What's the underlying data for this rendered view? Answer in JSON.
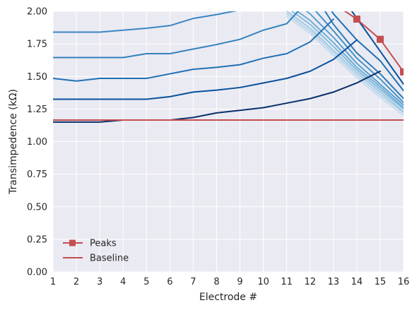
{
  "chart_data": {
    "type": "line",
    "xlabel": "Electrode #",
    "ylabel": "Transimpedence (kΩ)",
    "xlim": [
      1,
      16
    ],
    "ylim": [
      0,
      2.0
    ],
    "xticks": [
      1,
      2,
      3,
      4,
      5,
      6,
      7,
      8,
      9,
      10,
      11,
      12,
      13,
      14,
      15,
      16
    ],
    "yticks": [
      0.0,
      0.25,
      0.5,
      0.75,
      1.0,
      1.25,
      1.5,
      1.75,
      2.0
    ],
    "ytick_labels": [
      "0.00",
      "0.25",
      "0.50",
      "0.75",
      "1.00",
      "1.25",
      "1.50",
      "1.75",
      "2.00"
    ],
    "grid": true,
    "legend": {
      "position": "lower-left",
      "entries": [
        {
          "label": "Peaks",
          "color": "#c44e52",
          "marker": "square"
        },
        {
          "label": "Baseline",
          "color": "#c44e52",
          "marker": "none"
        }
      ]
    },
    "colors": {
      "background": "#eaeaf2",
      "grid": "#ffffff",
      "peaks": "#c44e52",
      "baseline": "#c44e52"
    },
    "baseline": {
      "x": [
        1,
        16
      ],
      "y": [
        1.165,
        1.165
      ]
    },
    "peaks": {
      "x": [
        13,
        14,
        15,
        16
      ],
      "y": [
        2.06,
        1.94,
        1.785,
        1.535
      ]
    },
    "rising_series": [
      {
        "color": "#08306b",
        "x": [
          1,
          2,
          3,
          4,
          5,
          6,
          7,
          8,
          9,
          10,
          11,
          12,
          13,
          14,
          15
        ],
        "y": [
          1.15,
          1.15,
          1.15,
          1.165,
          1.165,
          1.165,
          1.185,
          1.22,
          1.24,
          1.26,
          1.295,
          1.33,
          1.38,
          1.45,
          1.54
        ]
      },
      {
        "color": "#08519c",
        "x": [
          1,
          2,
          3,
          4,
          5,
          6,
          7,
          8,
          9,
          10,
          11,
          12,
          13,
          14
        ],
        "y": [
          1.325,
          1.325,
          1.325,
          1.325,
          1.325,
          1.345,
          1.38,
          1.395,
          1.415,
          1.45,
          1.485,
          1.54,
          1.63,
          1.78
        ]
      },
      {
        "color": "#2171b5",
        "x": [
          1,
          2,
          3,
          4,
          5,
          6,
          7,
          8,
          9,
          10,
          11,
          12,
          13
        ],
        "y": [
          1.485,
          1.465,
          1.485,
          1.485,
          1.485,
          1.52,
          1.555,
          1.57,
          1.59,
          1.64,
          1.675,
          1.765,
          1.94
        ]
      },
      {
        "color": "#3182bd",
        "x": [
          1,
          2,
          3,
          4,
          5,
          6,
          7,
          8,
          9,
          10,
          11,
          12
        ],
        "y": [
          1.645,
          1.645,
          1.645,
          1.645,
          1.675,
          1.675,
          1.71,
          1.745,
          1.785,
          1.855,
          1.905,
          2.1
        ]
      },
      {
        "color": "#3a87c4",
        "x": [
          1,
          2,
          3,
          4,
          5,
          6,
          7,
          8,
          9,
          10,
          11,
          12
        ],
        "y": [
          1.84,
          1.84,
          1.84,
          1.855,
          1.87,
          1.89,
          1.945,
          1.975,
          2.01,
          2.05,
          2.1,
          2.2
        ]
      }
    ],
    "falling_series": [
      {
        "color": "#08519c",
        "x": [
          13,
          16
        ],
        "y": [
          2.2,
          1.44
        ]
      },
      {
        "color": "#2171b5",
        "x": [
          12,
          13,
          14,
          15,
          16
        ],
        "y": [
          2.3,
          1.98,
          1.78,
          1.62,
          1.39
        ]
      },
      {
        "color": "#2b7bba",
        "x": [
          12,
          13,
          14,
          15,
          16
        ],
        "y": [
          2.18,
          1.9,
          1.68,
          1.52,
          1.33
        ]
      },
      {
        "color": "#4292c6",
        "x": [
          11,
          12,
          13,
          14,
          15,
          16
        ],
        "y": [
          2.2,
          2.05,
          1.85,
          1.64,
          1.48,
          1.3
        ]
      },
      {
        "color": "#5a9fd0",
        "x": [
          11,
          12,
          13,
          14,
          15,
          16
        ],
        "y": [
          2.12,
          1.98,
          1.8,
          1.6,
          1.44,
          1.28
        ]
      },
      {
        "color": "#6baed6",
        "x": [
          11,
          12,
          13,
          14,
          15,
          16
        ],
        "y": [
          2.06,
          1.93,
          1.76,
          1.57,
          1.42,
          1.26
        ]
      },
      {
        "color": "#84bcdf",
        "x": [
          11,
          12,
          13,
          14,
          15,
          16
        ],
        "y": [
          2.03,
          1.9,
          1.73,
          1.55,
          1.4,
          1.25
        ]
      },
      {
        "color": "#9ecae1",
        "x": [
          11,
          12,
          13,
          14,
          15,
          16
        ],
        "y": [
          2.0,
          1.87,
          1.7,
          1.53,
          1.38,
          1.23
        ]
      },
      {
        "color": "#b5d5ea",
        "x": [
          11,
          12,
          13,
          14,
          15,
          16
        ],
        "y": [
          1.98,
          1.85,
          1.68,
          1.51,
          1.36,
          1.22
        ]
      },
      {
        "color": "#c6dbef",
        "x": [
          11,
          12,
          13,
          14,
          15,
          16
        ],
        "y": [
          1.96,
          1.83,
          1.66,
          1.49,
          1.34,
          1.2
        ]
      }
    ]
  }
}
